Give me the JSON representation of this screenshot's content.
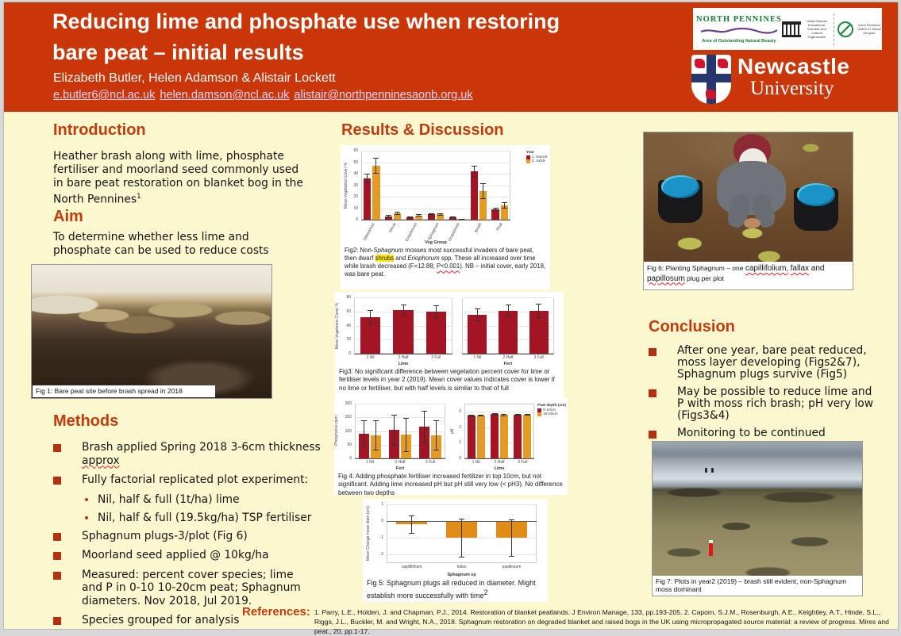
{
  "header": {
    "title_line1": "Reducing lime and phosphate use when restoring",
    "title_line2": "bare peat – initial results",
    "authors": "Elizabeth Butler, Helen Adamson & Alistair Lockett",
    "email1": "e.butler6@ncl.ac.uk",
    "email2": "helen.damson@ncl.ac.uk",
    "email3": "alistair@northpenninesaonb.org.uk"
  },
  "logos": {
    "np_title": "NORTH PENNINES",
    "np_subtitle": "Area of Outstanding Natural Beauty",
    "unesco_caption": "United Nations Educational, Scientific and Cultural Organization",
    "geopark_caption": "North Pennines UNESCO Global Geopark",
    "newcastle_line1": "Newcastle",
    "newcastle_line2": "University"
  },
  "introduction": {
    "heading": "Introduction",
    "body": "Heather brash along with lime, phosphate fertiliser and moorland seed commonly used in bare peat restoration on blanket bog in the North Pennines",
    "body_sup": "1"
  },
  "aim": {
    "heading": "Aim",
    "body": "To determine whether less lime and phosphate can be used to reduce costs"
  },
  "fig1_caption": "Fig 1: Bare peat site before brash spread in 2018",
  "methods": {
    "heading": "Methods",
    "b1_pre": "Brash applied Spring 2018 3-6cm thickness ",
    "b1_sq": "approx",
    "b2": "Fully factorial replicated plot experiment:",
    "b2_sub1": "Nil, half & full (1t/ha) lime",
    "b2_sub2": "Nil, half & full (19.5kg/ha) TSP fertiliser",
    "b3": "Sphagnum plugs-3/plot (Fig 6)",
    "b4": "Moorland seed applied @ 10kg/ha",
    "b5": "Measured: percent cover species; lime and P in 0-10 10-20cm peat; Sphagnum diameters. Nov 2018, Jul 2019.",
    "b6": "Species grouped for analysis"
  },
  "results": {
    "heading": "Results & Discussion",
    "fig2": {
      "p1": "Fig2: Non-",
      "i1": "Sphagnum",
      "p2": " mosses most successful invaders of bare peat, then dwarf ",
      "hl": "shrubs",
      "p3": " and ",
      "i2": "Eriophorum",
      "p4": " spp. These all increased over time while brash decreased (F=12.88; ",
      "sq": "P<0.001",
      "p5": "). NB – initial cover, early 2018, was bare peat."
    },
    "fig3_caption": "Fig3: No significant difference between vegetation percent cover  for lime  or fertiliser levels in year 2 (2019). Mean cover values indicates cover is lower if no lime or fertiliser, but with half levels is similar to that of full",
    "fig4_caption": "Fig 4: Adding phosphate fertiliser increased fertilizer in top 10cm, but not significant. Adding lime increased pH but pH still very low (< pH3). No difference between two depths",
    "fig5_caption_main": "Fig 5: Sphagnum plugs all reduced in diameter. Might establish more successfully with time",
    "fig5_caption_sup": "2"
  },
  "fig6": {
    "p1": "Fig 6: Planting Sphagnum – one ",
    "s1": "capillifolium,",
    "p2": " ",
    "s2": "fallax",
    "p3": " and ",
    "s3": "papillosum",
    "p4": " plug per plot"
  },
  "conclusion": {
    "heading": "Conclusion",
    "b1": "After one year, bare peat reduced, moss layer developing (Figs2&7), Sphagnum plugs survive (Fig5)",
    "b2": "May be possible to reduce lime and P with moss rich brash; pH very low (Figs3&4)",
    "b3": "Monitoring to be continued"
  },
  "fig7_caption": "Fig 7: Plots in year2 (2019) – brash still evident, non-Sphagnum moss dominant",
  "references": {
    "label": "References:",
    "text": "1. Parry, L.E., Holden, J. and Chapman, P.J., 2014. Restoration of blanket peatlands. J Environ Manage, 133, pp.193-205. 2. Caporn, S.J.M., Rosenburgh, A.E., Keightley, A.T., Hinde, S.L., Riggs, J.L., Buckler, M. and Wright, N.A., 2018. Sphagnum restoration on degraded blanket and raised bogs in the UK using micropropagated source material: a review of progress. Mires and peat., 20, pp.1-17."
  },
  "colors": {
    "header_bg": "#c93708",
    "accent": "#c23b0c",
    "bar_dark_red": "#a31425",
    "bar_orange": "#e49b26",
    "poster_bg": "#fbf8cf"
  },
  "chart_data": [
    {
      "id": "fig2",
      "type": "bar",
      "categories": [
        "OtherMoss",
        "Shrub",
        "Eriophorum",
        "Sphagnum",
        "Grass/Herb",
        "Brash",
        "Peat"
      ],
      "series": [
        {
          "name": "1. Nov18",
          "color": "#a31425",
          "values": [
            36,
            3,
            2,
            4.5,
            2,
            42,
            9
          ],
          "errors": [
            4,
            1,
            0.7,
            0.7,
            0.7,
            5,
            1.5
          ]
        },
        {
          "name": "2. Jul19",
          "color": "#e49b26",
          "values": [
            47,
            5.5,
            3.5,
            4.5,
            0.5,
            25,
            12.5
          ],
          "errors": [
            7,
            1.2,
            1,
            0.8,
            0.4,
            7,
            2.5
          ]
        }
      ],
      "xlabel": "Veg Group",
      "ylabel": "Mean Vegetation Cover %",
      "ylim": [
        0,
        60
      ],
      "yticks": [
        0,
        10,
        20,
        30,
        40,
        50,
        60
      ],
      "legend": {
        "title": "Year"
      }
    },
    {
      "id": "fig3a",
      "type": "bar",
      "categories": [
        "1 Nil",
        "2 Half",
        "3 Full"
      ],
      "series": [
        {
          "name": "Mean cover",
          "color": "#a31425",
          "values": [
            52,
            62,
            60
          ],
          "errors": [
            10,
            8,
            9
          ]
        }
      ],
      "xlabel": "Lime",
      "ylabel": "Mean Vegetation Cover %",
      "ylim": [
        0,
        80
      ],
      "yticks": [
        0,
        20,
        40,
        60,
        80
      ]
    },
    {
      "id": "fig3b",
      "type": "bar",
      "categories": [
        "1 Nil",
        "2 Half",
        "3 Full"
      ],
      "series": [
        {
          "name": "Mean cover",
          "color": "#a31425",
          "values": [
            55,
            61,
            61
          ],
          "errors": [
            9,
            9,
            10
          ]
        }
      ],
      "xlabel": "Fert",
      "ylabel": "",
      "ylim": [
        0,
        80
      ],
      "yticks": [
        0,
        20,
        40,
        60,
        80
      ]
    },
    {
      "id": "fig4a",
      "type": "bar",
      "categories": [
        "1 Nil",
        "2 Half",
        "3 Full"
      ],
      "series": [
        {
          "name": "0-10cm",
          "color": "#a31425",
          "values": [
            90,
            105,
            115
          ],
          "errors": [
            50,
            55,
            60
          ]
        },
        {
          "name": "10-20cm",
          "color": "#e49b26",
          "values": [
            83,
            86,
            83
          ],
          "errors": [
            55,
            62,
            55
          ]
        }
      ],
      "xlabel": "Fert",
      "ylabel": "Phosphorus ppm",
      "ylim": [
        0,
        200
      ],
      "yticks": [
        0,
        50,
        100,
        150,
        200
      ]
    },
    {
      "id": "fig4b",
      "type": "bar",
      "categories": [
        "1 Nil",
        "2 Half",
        "3 Full"
      ],
      "series": [
        {
          "name": "0-10cm",
          "color": "#a31425",
          "values": [
            2.72,
            2.82,
            2.78
          ],
          "errors": [
            0.07,
            0.07,
            0.05
          ]
        },
        {
          "name": "10-20cm",
          "color": "#e49b26",
          "values": [
            2.73,
            2.78,
            2.79
          ],
          "errors": [
            0.06,
            0.08,
            0.05
          ]
        }
      ],
      "xlabel": "Lime",
      "ylabel": "pH",
      "ylim": [
        0,
        3.5
      ],
      "yticks": [
        0,
        1,
        2,
        3
      ],
      "legend": {
        "title": "Peat depth (cm)"
      }
    },
    {
      "id": "fig5",
      "type": "bar",
      "categories": [
        "capillifolium",
        "fallax",
        "papillosum"
      ],
      "series": [
        {
          "name": "Mean change",
          "color": "#e08d18",
          "values": [
            -0.2,
            -1.0,
            -1.0
          ],
          "errors": [
            0.55,
            1.15,
            1.1
          ]
        }
      ],
      "xlabel": "Sphagnum sp",
      "ylabel": "Mean Change mean diam (cm)",
      "ylim": [
        -2.5,
        1
      ],
      "yticks": [
        -2,
        -1,
        0,
        1
      ]
    }
  ]
}
